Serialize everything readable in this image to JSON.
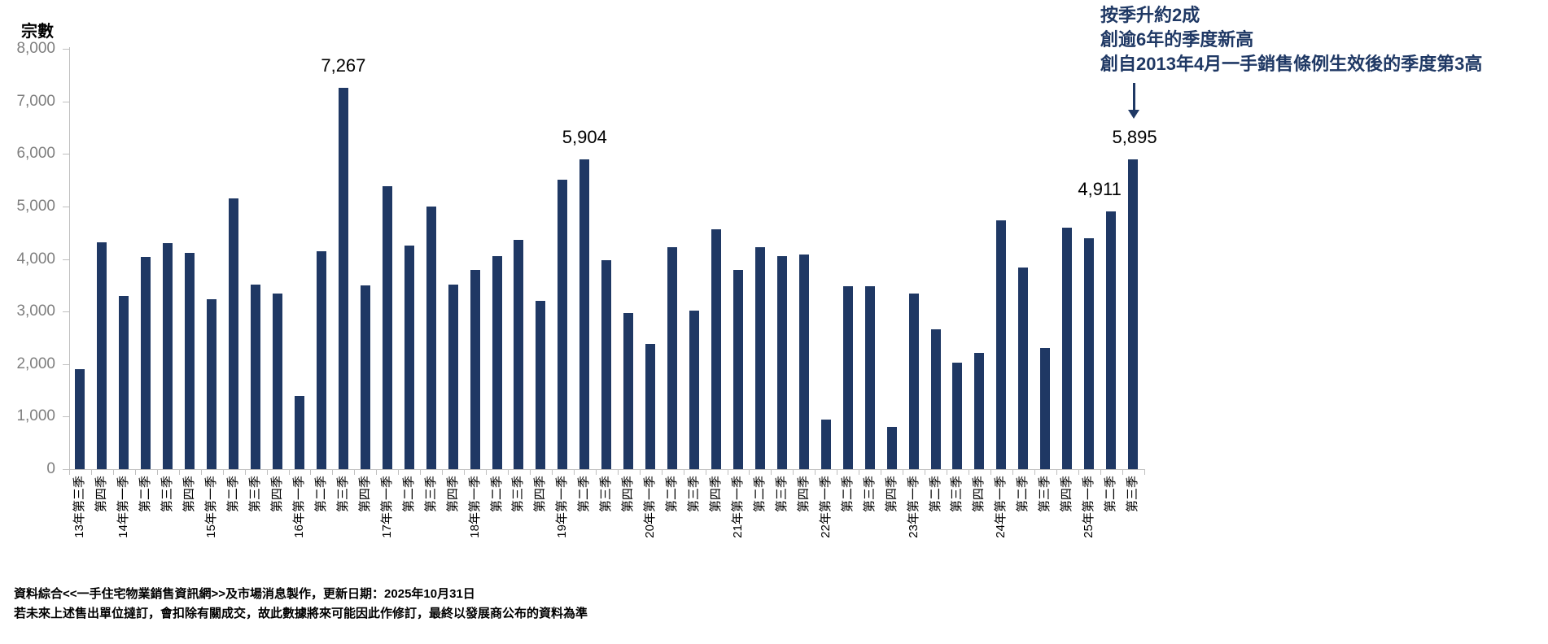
{
  "chart_data": {
    "type": "bar",
    "title": "",
    "xlabel": "",
    "ylabel": "宗數",
    "ylim": [
      0,
      8000
    ],
    "y_tick_step": 1000,
    "y_tick_labels": [
      "0",
      "1,000",
      "2,000",
      "3,000",
      "4,000",
      "5,000",
      "6,000",
      "7,000",
      "8,000"
    ],
    "grid": false,
    "legend": false,
    "bar_color": "#1f3864",
    "axis_color": "#bfbfbf",
    "y_label_color": "#7f7f7f",
    "categories": [
      "13年第三季",
      "第四季",
      "14年第一季",
      "第二季",
      "第三季",
      "第四季",
      "15年第一季",
      "第二季",
      "第三季",
      "第四季",
      "16年第一季",
      "第二季",
      "第三季",
      "第四季",
      "17年第一季",
      "第二季",
      "第三季",
      "第四季",
      "18年第一季",
      "第二季",
      "第三季",
      "第四季",
      "19年第一季",
      "第二季",
      "第三季",
      "第四季",
      "20年第一季",
      "第二季",
      "第三季",
      "第四季",
      "21年第一季",
      "第二季",
      "第三季",
      "第四季",
      "22年第一季",
      "第二季",
      "第三季",
      "第四季",
      "23年第一季",
      "第二季",
      "第三季",
      "第四季",
      "24年第一季",
      "第二季",
      "第三季",
      "第四季",
      "25年第一季",
      "第二季",
      "第三季"
    ],
    "values": [
      1900,
      4320,
      3290,
      4040,
      4310,
      4110,
      3230,
      5160,
      3520,
      3350,
      1400,
      4150,
      7267,
      3500,
      5380,
      4250,
      5000,
      3520,
      3790,
      4060,
      4360,
      3200,
      5510,
      5904,
      3980,
      2970,
      2390,
      4220,
      3020,
      4560,
      3800,
      4230,
      4050,
      4080,
      940,
      3490,
      3490,
      800,
      3350,
      2660,
      2030,
      2210,
      4740,
      3840,
      2300,
      4600,
      4390,
      4911,
      5895
    ],
    "annotations": [
      {
        "bar_index": 12,
        "label": "7,267",
        "dx": 0
      },
      {
        "bar_index": 23,
        "label": "5,904",
        "dx": 0
      },
      {
        "bar_index": 47,
        "label": "4,911",
        "dx": -14
      },
      {
        "bar_index": 48,
        "label": "5,895",
        "dx": 2
      }
    ],
    "callout": {
      "color": "#1f3864",
      "lines": [
        "按季升約2成",
        "創逾6年的季度新高",
        "創自2013年4月一手銷售條例生效後的季度第3高"
      ]
    }
  },
  "footer": {
    "line1": "資料綜合<<一手住宅物業銷售資訊網>>及市場消息製作，更新日期：2025年10月31日",
    "line2": "若未來上述售出單位撻訂，會扣除有關成交，故此數據將來可能因此作修訂，最終以發展商公布的資料為準"
  }
}
